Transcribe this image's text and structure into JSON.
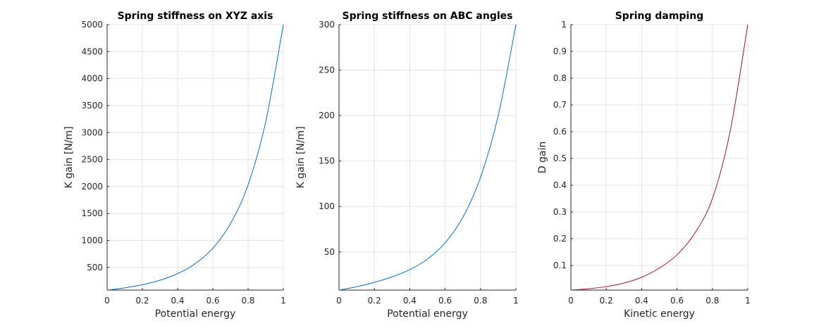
{
  "chart_data": [
    {
      "type": "line",
      "title": "Spring stiffness on XYZ axis",
      "xlabel": "Potential energy",
      "ylabel": "K gain [N/m]",
      "xlim": [
        0,
        1
      ],
      "ylim": [
        80,
        5000
      ],
      "xticks": [
        0,
        0.2,
        0.4,
        0.6,
        0.8,
        1
      ],
      "yticks": [
        500,
        1000,
        1500,
        2000,
        2500,
        3000,
        3500,
        4000,
        4500,
        5000
      ],
      "grid": true,
      "color": "#0072BD",
      "series": [
        {
          "x": [
            0,
            0.1,
            0.2,
            0.3,
            0.4,
            0.5,
            0.6,
            0.7,
            0.8,
            0.9,
            1.0
          ],
          "y": [
            80,
            121,
            179,
            263,
            385,
            570,
            857,
            1310,
            2030,
            3200,
            5000
          ]
        }
      ]
    },
    {
      "type": "line",
      "title": "Spring stiffness on ABC angles",
      "xlabel": "Potential energy",
      "ylabel": "K gain [N/m]",
      "xlim": [
        0,
        1
      ],
      "ylim": [
        8,
        300
      ],
      "xticks": [
        0,
        0.2,
        0.4,
        0.6,
        0.8,
        1
      ],
      "yticks": [
        50,
        100,
        150,
        200,
        250,
        300
      ],
      "grid": true,
      "color": "#0072BD",
      "series": [
        {
          "x": [
            0,
            0.1,
            0.2,
            0.3,
            0.4,
            0.5,
            0.6,
            0.7,
            0.8,
            0.9,
            1.0
          ],
          "y": [
            8,
            11.7,
            16.5,
            22.5,
            30.5,
            42,
            60,
            88,
            132,
            200,
            300
          ]
        }
      ]
    },
    {
      "type": "line",
      "title": "Spring damping",
      "xlabel": "Kinetic energy",
      "ylabel": "D gain",
      "xlim": [
        0,
        1
      ],
      "ylim": [
        0.008,
        1
      ],
      "xticks": [
        0,
        0.2,
        0.4,
        0.6,
        0.8,
        1
      ],
      "yticks": [
        0.1,
        0.2,
        0.3,
        0.4,
        0.5,
        0.6,
        0.7,
        0.8,
        0.9,
        1
      ],
      "grid": true,
      "color": "#A2142F",
      "series": [
        {
          "x": [
            0,
            0.1,
            0.2,
            0.3,
            0.4,
            0.5,
            0.6,
            0.7,
            0.8,
            0.9,
            1.0
          ],
          "y": [
            0.008,
            0.013,
            0.021,
            0.034,
            0.056,
            0.09,
            0.14,
            0.22,
            0.35,
            0.6,
            1.0
          ]
        }
      ]
    }
  ]
}
